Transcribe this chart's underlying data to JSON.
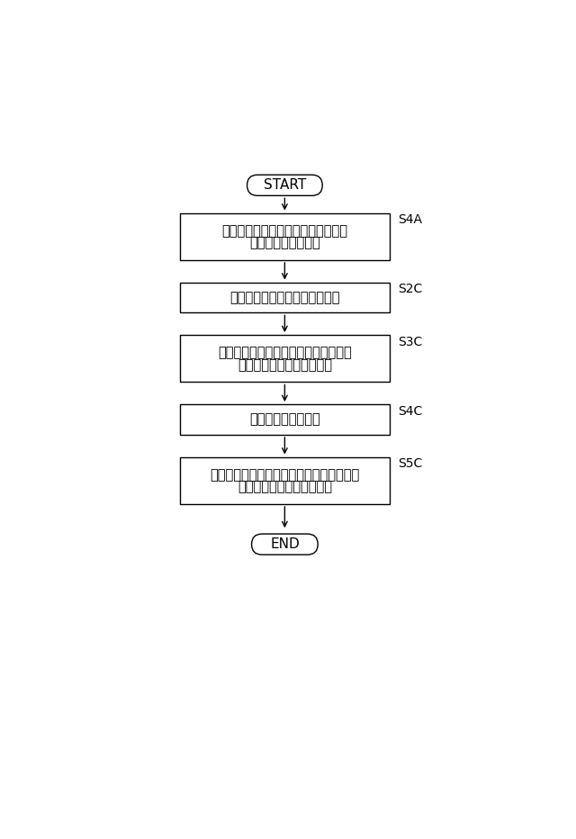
{
  "bg_color": "#ffffff",
  "start_label": "START",
  "end_label": "END",
  "boxes": [
    {
      "label_line1": "マイクアレイの指向性制御を解除、",
      "label_line2": "又は、左右に向ける",
      "tag": "S4A",
      "two_line": true
    },
    {
      "label_line1": "マイクアレイの入力音声を取得",
      "label_line2": "",
      "tag": "S2C",
      "two_line": false
    },
    {
      "label_line1": "スピーカー出力分の音声を間引きし、",
      "label_line2": "実際のノイズレベルを検出",
      "tag": "S3C",
      "two_line": true
    },
    {
      "label_line1": "ノイズの情報を記憶",
      "label_line2": "",
      "tag": "S4C",
      "two_line": false
    },
    {
      "label_line1": "ノイズの情報に基づいてスピーカー出力の",
      "label_line2": "音量、音響特性を自動調整",
      "tag": "S5C",
      "two_line": true
    }
  ]
}
